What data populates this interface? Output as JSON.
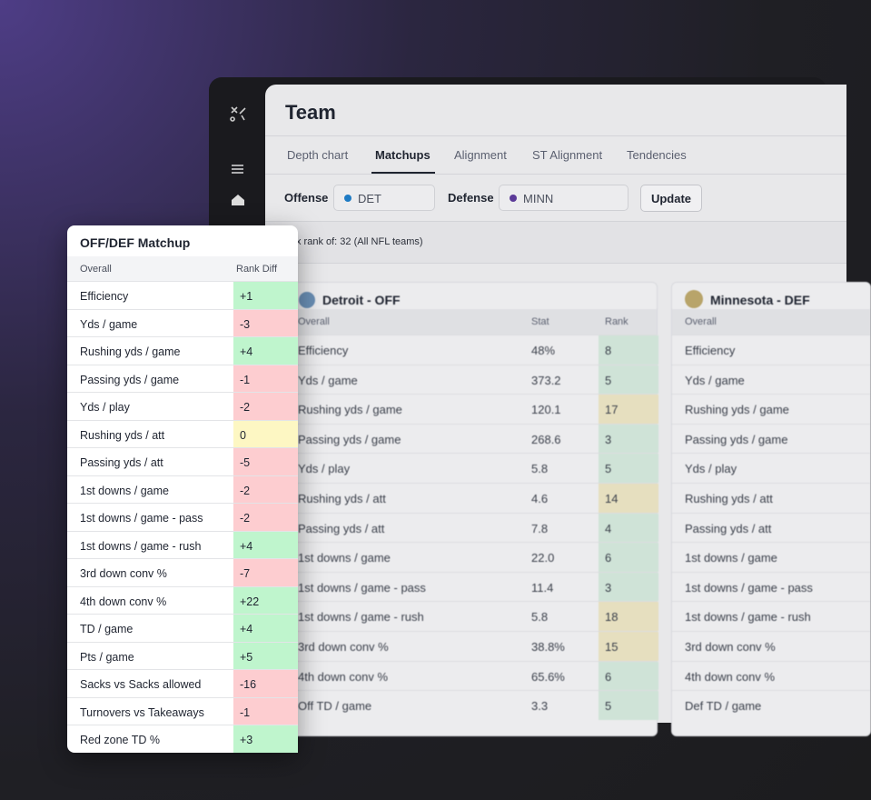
{
  "app": {
    "title": "Team",
    "tabs": [
      "Depth chart",
      "Matchups",
      "Alignment",
      "ST Alignment",
      "Tendencies"
    ],
    "active_tab": 1,
    "filters": {
      "offense_label": "Offense",
      "offense_team": "DET",
      "defense_label": "Defense",
      "defense_team": "MINN",
      "button": "Update"
    },
    "rank_note": "x rank of: 32 (All NFL teams)",
    "offense_table": {
      "title": "Detroit - OFF",
      "columns": [
        "Overall",
        "Stat",
        "Rank"
      ],
      "rows": [
        [
          "Efficiency",
          "48%",
          8
        ],
        [
          "Yds / game",
          "373.2",
          5
        ],
        [
          "Rushing yds / game",
          "120.1",
          17
        ],
        [
          "Passing yds / game",
          "268.6",
          3
        ],
        [
          "Yds / play",
          "5.8",
          5
        ],
        [
          "Rushing yds / att",
          "4.6",
          14
        ],
        [
          "Passing yds / att",
          "7.8",
          4
        ],
        [
          "1st downs / game",
          "22.0",
          6
        ],
        [
          "1st downs / game - pass",
          "11.4",
          3
        ],
        [
          "1st downs / game - rush",
          "5.8",
          18
        ],
        [
          "3rd down conv %",
          "38.8%",
          15
        ],
        [
          "4th down conv %",
          "65.6%",
          6
        ],
        [
          "Off TD / game",
          "3.3",
          5
        ]
      ]
    },
    "defense_table": {
      "title": "Minnesota - DEF",
      "columns": [
        "Overall"
      ],
      "rows": [
        "Efficiency",
        "Yds / game",
        "Rushing yds / game",
        "Passing yds / game",
        "Yds / play",
        "Rushing yds / att",
        "Passing yds / att",
        "1st downs / game",
        "1st downs / game - pass",
        "1st downs / game - rush",
        "3rd down conv %",
        "4th down conv %",
        "Def TD / game"
      ]
    }
  },
  "matchup_card": {
    "title": "OFF/DEF Matchup",
    "columns": [
      "Overall",
      "Rank Diff"
    ],
    "rows": [
      [
        "Efficiency",
        "+1"
      ],
      [
        "Yds / game",
        "-3"
      ],
      [
        "Rushing yds / game",
        "+4"
      ],
      [
        "Passing yds / game",
        "-1"
      ],
      [
        "Yds / play",
        "-2"
      ],
      [
        "Rushing yds / att",
        "0"
      ],
      [
        "Passing yds / att",
        "-5"
      ],
      [
        "1st downs / game",
        "-2"
      ],
      [
        "1st downs / game - pass",
        "-2"
      ],
      [
        "1st downs / game - rush",
        "+4"
      ],
      [
        "3rd down conv %",
        "-7"
      ],
      [
        "4th down conv %",
        "+22"
      ],
      [
        "TD / game",
        "+4"
      ],
      [
        "Pts / game",
        "+5"
      ],
      [
        "Sacks vs Sacks allowed",
        "-16"
      ],
      [
        "Turnovers vs Takeaways",
        "-1"
      ],
      [
        "Red zone TD %",
        "+3"
      ]
    ]
  }
}
